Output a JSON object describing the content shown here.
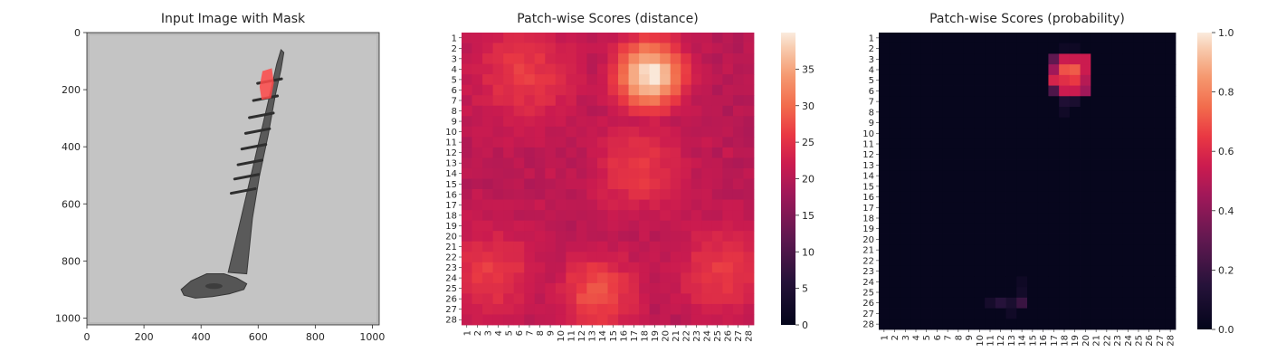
{
  "chart_data": [
    {
      "type": "image",
      "title": "Input Image with Mask",
      "x_ticks": [
        0,
        200,
        400,
        600,
        800,
        1000
      ],
      "y_ticks": [
        0,
        200,
        400,
        600,
        800,
        1000
      ],
      "xlim": [
        0,
        1024
      ],
      "ylim": [
        1024,
        0
      ],
      "object": "screw",
      "mask_color": "#ff4a4a"
    },
    {
      "type": "heatmap",
      "title": "Patch-wise Scores (distance)",
      "rows": 28,
      "cols": 28,
      "tick_labels": [
        "1",
        "2",
        "3",
        "4",
        "5",
        "6",
        "7",
        "8",
        "9",
        "10",
        "11",
        "12",
        "13",
        "14",
        "15",
        "16",
        "17",
        "18",
        "19",
        "20",
        "21",
        "22",
        "23",
        "24",
        "25",
        "26",
        "27",
        "28"
      ],
      "colorbar_ticks": [
        0,
        5,
        10,
        15,
        20,
        25,
        30,
        35
      ],
      "vmin": 0,
      "vmax": 40,
      "colormap": "rocket",
      "baseline": 20,
      "hotspots": [
        {
          "row": 4.5,
          "col": 18.5,
          "radius": 2.2,
          "peak": 40
        },
        {
          "row": 25.5,
          "col": 13.5,
          "radius": 2.6,
          "peak": 28
        },
        {
          "row": 4.5,
          "col": 6.5,
          "radius": 3.5,
          "peak": 26
        },
        {
          "row": 23.5,
          "col": 3.5,
          "radius": 3.0,
          "peak": 26
        },
        {
          "row": 23.5,
          "col": 25.5,
          "radius": 3.0,
          "peak": 26
        },
        {
          "row": 13.5,
          "col": 17.5,
          "radius": 3.0,
          "peak": 26
        }
      ]
    },
    {
      "type": "heatmap",
      "title": "Patch-wise Scores (probability)",
      "rows": 28,
      "cols": 28,
      "tick_labels": [
        "1",
        "2",
        "3",
        "4",
        "5",
        "6",
        "7",
        "8",
        "9",
        "10",
        "11",
        "12",
        "13",
        "14",
        "15",
        "16",
        "17",
        "18",
        "19",
        "20",
        "21",
        "22",
        "23",
        "24",
        "25",
        "26",
        "27",
        "28"
      ],
      "colorbar_ticks": [
        0.0,
        0.2,
        0.4,
        0.6,
        0.8,
        1.0
      ],
      "colorbar_tick_labels": [
        "0.0",
        "0.2",
        "0.4",
        "0.6",
        "0.8",
        "1.0"
      ],
      "vmin": 0,
      "vmax": 1,
      "colormap": "rocket",
      "cells": [
        {
          "row": 3,
          "col": 17,
          "value": 0.3
        },
        {
          "row": 3,
          "col": 18,
          "value": 0.55
        },
        {
          "row": 3,
          "col": 19,
          "value": 0.55
        },
        {
          "row": 3,
          "col": 20,
          "value": 0.55
        },
        {
          "row": 4,
          "col": 17,
          "value": 0.45
        },
        {
          "row": 4,
          "col": 18,
          "value": 0.7
        },
        {
          "row": 4,
          "col": 19,
          "value": 0.72
        },
        {
          "row": 4,
          "col": 20,
          "value": 0.55
        },
        {
          "row": 5,
          "col": 17,
          "value": 0.58
        },
        {
          "row": 5,
          "col": 18,
          "value": 0.62
        },
        {
          "row": 5,
          "col": 19,
          "value": 0.65
        },
        {
          "row": 5,
          "col": 20,
          "value": 0.5
        },
        {
          "row": 6,
          "col": 17,
          "value": 0.25
        },
        {
          "row": 6,
          "col": 18,
          "value": 0.55
        },
        {
          "row": 6,
          "col": 19,
          "value": 0.55
        },
        {
          "row": 6,
          "col": 20,
          "value": 0.45
        },
        {
          "row": 7,
          "col": 18,
          "value": 0.12
        },
        {
          "row": 7,
          "col": 19,
          "value": 0.1
        },
        {
          "row": 8,
          "col": 18,
          "value": 0.06
        },
        {
          "row": 2,
          "col": 18,
          "value": 0.05
        },
        {
          "row": 2,
          "col": 19,
          "value": 0.05
        },
        {
          "row": 24,
          "col": 14,
          "value": 0.05
        },
        {
          "row": 25,
          "col": 14,
          "value": 0.07
        },
        {
          "row": 26,
          "col": 12,
          "value": 0.15
        },
        {
          "row": 26,
          "col": 13,
          "value": 0.1
        },
        {
          "row": 26,
          "col": 14,
          "value": 0.2
        },
        {
          "row": 26,
          "col": 11,
          "value": 0.08
        },
        {
          "row": 27,
          "col": 13,
          "value": 0.06
        }
      ]
    }
  ]
}
